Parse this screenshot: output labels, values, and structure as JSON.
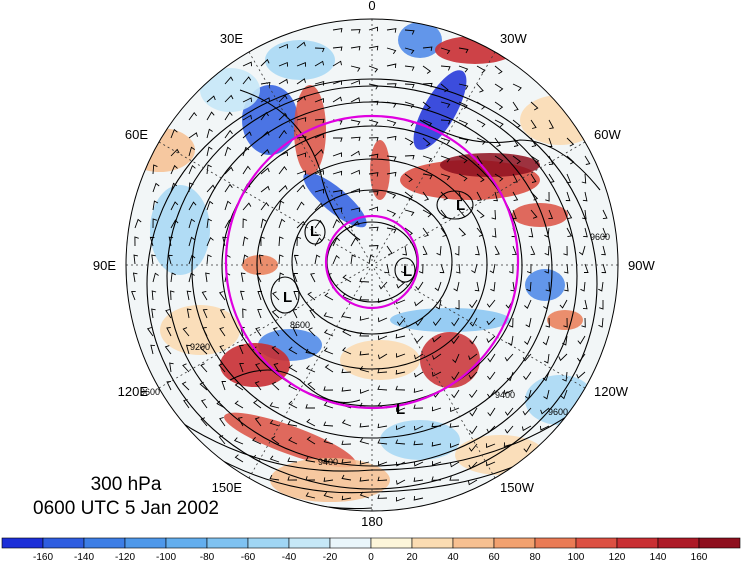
{
  "map": {
    "projection": "north-polar-stereographic",
    "longitude_labels": {
      "top": "0",
      "bottom": "180",
      "left": "90E",
      "right": "90W",
      "upper_left": "30E",
      "upper_right": "30W",
      "mid_upper_left": "60E",
      "mid_upper_right": "60W",
      "mid_lower_left": "120E",
      "mid_lower_right": "120W",
      "lower_left": "150E",
      "lower_right": "150W"
    },
    "contour_labels": [
      "9600",
      "9400",
      "9200",
      "8600",
      "9600",
      "9400",
      "9600"
    ],
    "low_markers": [
      "L",
      "L",
      "L",
      "L",
      "L"
    ],
    "reference_circle_color": "#e000e0"
  },
  "caption": {
    "level": "300 hPa",
    "time": "0600 UTC 5 Jan 2002"
  },
  "colorbar": {
    "tick_labels": [
      "-160",
      "-140",
      "-120",
      "-100",
      "-80",
      "-60",
      "-40",
      "-20",
      "0",
      "20",
      "40",
      "60",
      "80",
      "100",
      "120",
      "140",
      "160"
    ],
    "colors": [
      "#1c2fd8",
      "#2e5de0",
      "#3d7ee6",
      "#4e98ea",
      "#63aeee",
      "#7fc2f1",
      "#a0d6f4",
      "#c6e8f7",
      "#eaf6fb",
      "#fdf6da",
      "#fbdcb2",
      "#f7c091",
      "#f2a16f",
      "#ea7b55",
      "#dc5042",
      "#c92f33",
      "#ad1a27",
      "#8e0f1e"
    ]
  }
}
